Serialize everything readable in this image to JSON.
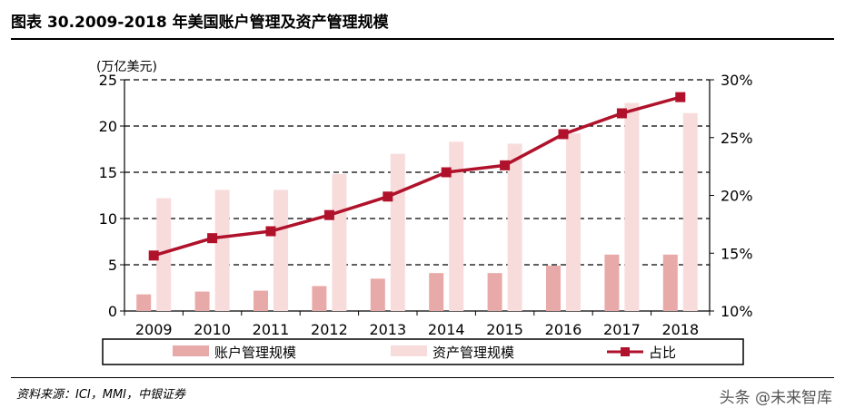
{
  "page": {
    "title": "图表 30.2009-2018 年美国账户管理及资产管理规模",
    "source": "资料来源：ICI，MMI，中银证券",
    "watermark": "头条 @未来智库"
  },
  "colors": {
    "account_bar": "#e8aaa8",
    "asset_bar": "#f8dcdc",
    "ratio_line": "#b0112b",
    "grid": "#000000"
  },
  "chart_data": {
    "type": "bar",
    "categories": [
      "2009",
      "2010",
      "2011",
      "2012",
      "2013",
      "2014",
      "2015",
      "2016",
      "2017",
      "2018"
    ],
    "series": [
      {
        "name": "账户管理规模",
        "type": "bar",
        "axis": "left",
        "values": [
          1.8,
          2.1,
          2.2,
          2.7,
          3.5,
          4.1,
          4.1,
          4.9,
          6.1,
          6.1
        ]
      },
      {
        "name": "资产管理规模",
        "type": "bar",
        "axis": "left",
        "values": [
          12.2,
          13.1,
          13.1,
          14.8,
          17.0,
          18.3,
          18.1,
          19.2,
          22.5,
          21.4
        ]
      },
      {
        "name": "占比",
        "type": "line",
        "axis": "right",
        "values": [
          14.8,
          16.3,
          16.9,
          18.3,
          19.9,
          22.0,
          22.6,
          25.3,
          27.1,
          28.5
        ]
      }
    ],
    "ylabel": "(万亿美元)",
    "ylim": [
      0,
      25
    ],
    "yticks": [
      "0",
      "5",
      "10",
      "15",
      "20",
      "25"
    ],
    "y2lim": [
      10,
      30
    ],
    "y2ticks": [
      "10%",
      "15%",
      "20%",
      "25%",
      "30%"
    ],
    "grid": true,
    "legend_position": "bottom"
  }
}
